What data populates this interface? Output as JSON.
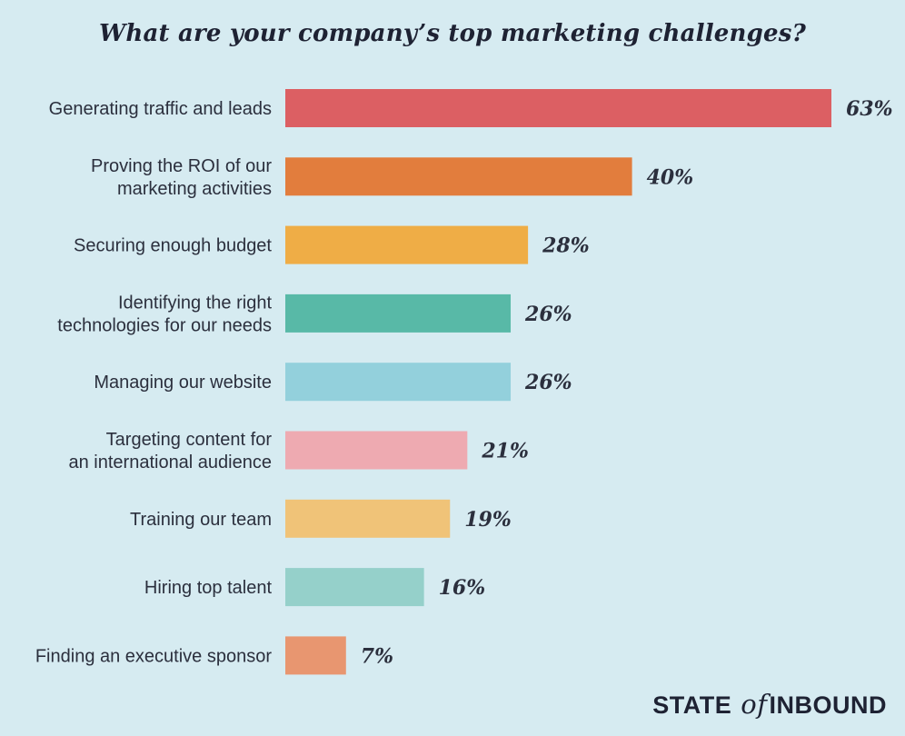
{
  "chart_data": {
    "type": "bar",
    "orientation": "horizontal",
    "title": "What are your company’s top marketing challenges?",
    "categories": [
      [
        "Generating traffic and leads"
      ],
      [
        "Proving the ROI of our",
        "marketing activities"
      ],
      [
        "Securing enough budget"
      ],
      [
        "Identifying the right",
        "technologies for our needs"
      ],
      [
        "Managing our website"
      ],
      [
        "Targeting content for",
        "an international audience"
      ],
      [
        "Training our team"
      ],
      [
        "Hiring top talent"
      ],
      [
        "Finding an executive sponsor"
      ]
    ],
    "values": [
      63,
      40,
      28,
      26,
      26,
      21,
      19,
      16,
      7
    ],
    "value_labels": [
      "63%",
      "40%",
      "28%",
      "26%",
      "26%",
      "21%",
      "19%",
      "16%",
      "7%"
    ],
    "colors": [
      "#dc5f63",
      "#e27d3d",
      "#efad46",
      "#58b9a7",
      "#93d0dc",
      "#eeaab1",
      "#f0c378",
      "#95d0ca",
      "#e89670"
    ],
    "xlim": [
      0,
      63
    ],
    "grid": false,
    "legend": "none"
  },
  "branding": {
    "state": "STATE",
    "of": "of",
    "inbound": "INBOUND"
  }
}
